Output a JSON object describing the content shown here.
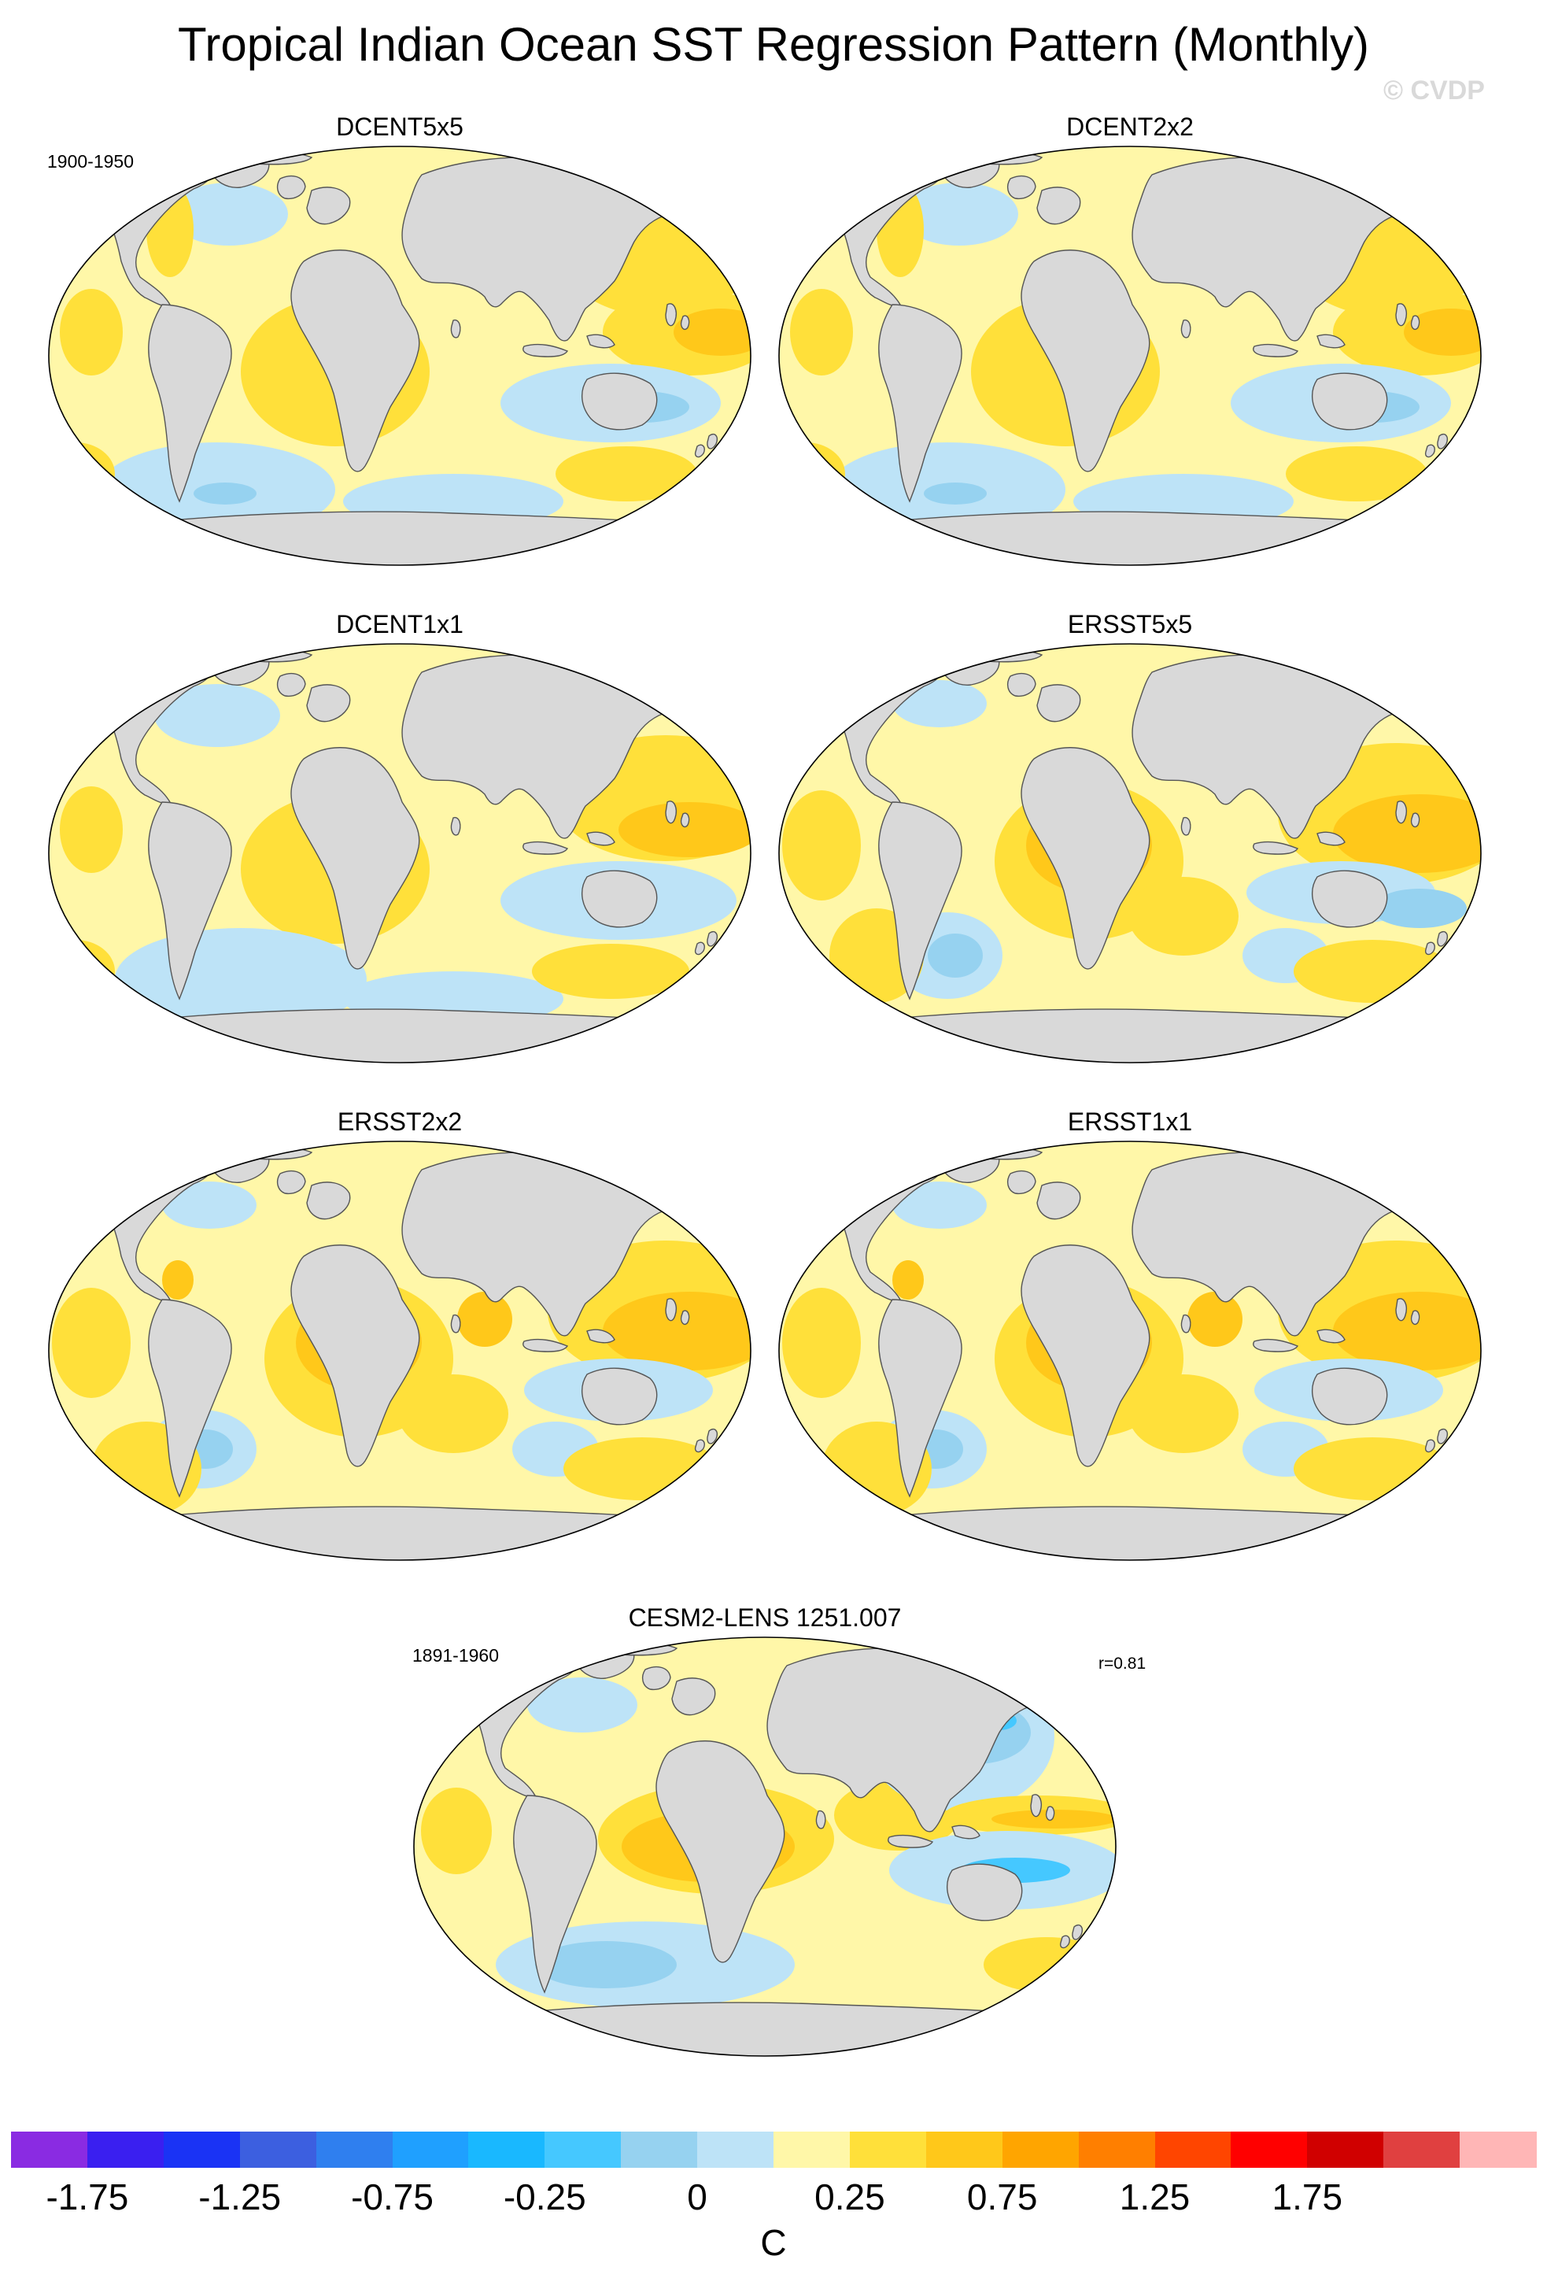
{
  "title": "Tropical Indian Ocean SST Regression Pattern (Monthly)",
  "watermark": "© CVDP",
  "obs_period": "1900-1950",
  "model_period": "1891-1960",
  "panels": [
    {
      "name": "DCENT5x5",
      "variant": 1
    },
    {
      "name": "DCENT2x2",
      "variant": 1
    },
    {
      "name": "DCENT1x1",
      "variant": 2
    },
    {
      "name": "ERSST5x5",
      "variant": 3
    },
    {
      "name": "ERSST2x2",
      "variant": 4
    },
    {
      "name": "ERSST1x1",
      "variant": 4
    }
  ],
  "model_panel": {
    "name": "CESM2-LENS 1251.007",
    "r_label": "r=0.81",
    "variant": 5
  },
  "colorbar": {
    "unit": "C",
    "colors": [
      "#8a2be2",
      "#3a1ff0",
      "#1a33f5",
      "#3c5fe0",
      "#2f7fef",
      "#1fa0ff",
      "#19b8ff",
      "#45c8ff",
      "#96d2f0",
      "#bde3f7",
      "#fff7a8",
      "#ffe03a",
      "#ffc81a",
      "#ffa500",
      "#ff7f00",
      "#ff4500",
      "#ff0000",
      "#d00000",
      "#e04040",
      "#ffb6b6"
    ],
    "labels": [
      "-1.75",
      "-1.25",
      "-0.75",
      "-0.25",
      "0",
      "0.25",
      "0.75",
      "1.25",
      "1.75"
    ]
  }
}
